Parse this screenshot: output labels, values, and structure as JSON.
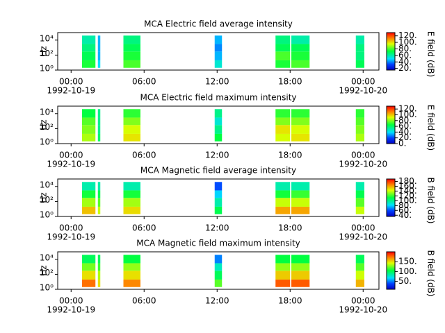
{
  "chart_data": [
    {
      "type": "spectrogram",
      "title": "MCA  Electric field average intensity",
      "ylabel": "Hz",
      "colorbar_label": "E field (dB)",
      "xlim": [
        -1.1,
        25.3
      ],
      "xticks": [
        {
          "value": 0,
          "label": "00:00"
        },
        {
          "value": 6,
          "label": "06:00"
        },
        {
          "value": 12,
          "label": "12:00"
        },
        {
          "value": 18,
          "label": "18:00"
        },
        {
          "value": 24,
          "label": "00:00"
        }
      ],
      "date_labels": [
        {
          "value": 0,
          "label": "1992-10-19"
        },
        {
          "value": 24,
          "label": "1992-10-20"
        }
      ],
      "log_y": true,
      "ylim": [
        1,
        100000
      ],
      "yticks": [
        {
          "value": 1,
          "label": "10⁰"
        },
        {
          "value": 100,
          "label": "10²"
        },
        {
          "value": 10000,
          "label": "10⁴"
        }
      ],
      "clim": [
        15,
        130
      ],
      "cticks": [
        {
          "value": 20,
          "label": "20."
        },
        {
          "value": 40,
          "label": "40."
        },
        {
          "value": 60,
          "label": "60."
        },
        {
          "value": 80,
          "label": "80."
        },
        {
          "value": 100,
          "label": "100."
        },
        {
          "value": 120,
          "label": "120."
        }
      ],
      "segments": [
        [
          0.9,
          2.0
        ],
        [
          2.2,
          2.4
        ],
        [
          4.3,
          5.7
        ],
        [
          11.8,
          12.4
        ],
        [
          16.8,
          18.0
        ],
        [
          18.1,
          19.6
        ],
        [
          23.4,
          24.1
        ]
      ],
      "freq_edges": [
        2,
        20,
        300,
        3000,
        40000
      ],
      "values": [
        [
          75,
          70,
          65,
          60
        ],
        [
          50,
          45,
          45,
          45
        ],
        [
          80,
          75,
          70,
          65
        ],
        [
          55,
          45,
          40,
          45
        ],
        [
          75,
          80,
          70,
          65
        ],
        [
          80,
          75,
          70,
          60
        ],
        [
          70,
          65,
          65,
          60
        ]
      ]
    },
    {
      "type": "spectrogram",
      "title": "MCA  Electric field maximum intensity",
      "ylabel": "Hz",
      "colorbar_label": "E field (dB)",
      "xlim": [
        -1.1,
        25.3
      ],
      "xticks": [
        {
          "value": 0,
          "label": "00:00"
        },
        {
          "value": 6,
          "label": "06:00"
        },
        {
          "value": 12,
          "label": "12:00"
        },
        {
          "value": 18,
          "label": "18:00"
        },
        {
          "value": 24,
          "label": "00:00"
        }
      ],
      "date_labels": [
        {
          "value": 0,
          "label": "1992-10-19"
        },
        {
          "value": 24,
          "label": "1992-10-20"
        }
      ],
      "log_y": true,
      "ylim": [
        1,
        100000
      ],
      "yticks": [
        {
          "value": 1,
          "label": "10⁰"
        },
        {
          "value": 100,
          "label": "10²"
        },
        {
          "value": 10000,
          "label": "10⁴"
        }
      ],
      "clim": [
        0,
        130
      ],
      "cticks": [
        {
          "value": 0,
          "label": "0."
        },
        {
          "value": 20,
          "label": "20."
        },
        {
          "value": 40,
          "label": "40."
        },
        {
          "value": 60,
          "label": "60."
        },
        {
          "value": 80,
          "label": "80."
        },
        {
          "value": 100,
          "label": "100."
        },
        {
          "value": 120,
          "label": "120."
        }
      ],
      "segments": [
        [
          0.9,
          2.0
        ],
        [
          2.2,
          2.4
        ],
        [
          4.3,
          5.7
        ],
        [
          11.8,
          12.4
        ],
        [
          16.8,
          18.0
        ],
        [
          18.1,
          19.6
        ],
        [
          23.4,
          24.1
        ]
      ],
      "freq_edges": [
        2,
        20,
        300,
        3000,
        40000
      ],
      "values": [
        [
          85,
          80,
          75,
          65
        ],
        [
          60,
          55,
          55,
          55
        ],
        [
          95,
          90,
          80,
          70
        ],
        [
          65,
          55,
          45,
          55
        ],
        [
          90,
          95,
          80,
          70
        ],
        [
          95,
          90,
          80,
          70
        ],
        [
          85,
          80,
          75,
          70
        ]
      ]
    },
    {
      "type": "spectrogram",
      "title": "MCA  Magnetic field average intensity",
      "ylabel": "Hz",
      "colorbar_label": "B field (dB)",
      "xlim": [
        -1.1,
        25.3
      ],
      "xticks": [
        {
          "value": 0,
          "label": "00:00"
        },
        {
          "value": 6,
          "label": "06:00"
        },
        {
          "value": 12,
          "label": "12:00"
        },
        {
          "value": 18,
          "label": "18:00"
        },
        {
          "value": 24,
          "label": "00:00"
        }
      ],
      "date_labels": [
        {
          "value": 0,
          "label": "1992-10-19"
        },
        {
          "value": 24,
          "label": "1992-10-20"
        }
      ],
      "log_y": true,
      "ylim": [
        1,
        100000
      ],
      "yticks": [
        {
          "value": 1,
          "label": "10⁰"
        },
        {
          "value": 100,
          "label": "10²"
        },
        {
          "value": 10000,
          "label": "10⁴"
        }
      ],
      "clim": [
        35,
        190
      ],
      "cticks": [
        {
          "value": 40,
          "label": "40."
        },
        {
          "value": 60,
          "label": "60."
        },
        {
          "value": 80,
          "label": "80."
        },
        {
          "value": 100,
          "label": "100."
        },
        {
          "value": 120,
          "label": "120."
        },
        {
          "value": 140,
          "label": "140."
        },
        {
          "value": 160,
          "label": "160."
        },
        {
          "value": 180,
          "label": "180."
        }
      ],
      "segments": [
        [
          0.9,
          2.0
        ],
        [
          2.2,
          2.4
        ],
        [
          4.3,
          5.7
        ],
        [
          11.8,
          12.4
        ],
        [
          16.8,
          18.0
        ],
        [
          18.1,
          19.6
        ],
        [
          23.4,
          24.1
        ]
      ],
      "freq_edges": [
        2,
        20,
        300,
        3000,
        40000
      ],
      "values": [
        [
          155,
          135,
          115,
          95
        ],
        [
          140,
          125,
          110,
          95
        ],
        [
          150,
          135,
          115,
          95
        ],
        [
          110,
          95,
          80,
          60
        ],
        [
          160,
          140,
          115,
          95
        ],
        [
          160,
          140,
          120,
          95
        ],
        [
          140,
          125,
          110,
          95
        ]
      ]
    },
    {
      "type": "spectrogram",
      "title": "MCA  Magnetic field maximum intensity",
      "ylabel": "Hz",
      "colorbar_label": "B field (dB)",
      "xlim": [
        -1.1,
        25.3
      ],
      "xticks": [
        {
          "value": 0,
          "label": "00:00"
        },
        {
          "value": 6,
          "label": "06:00"
        },
        {
          "value": 12,
          "label": "12:00"
        },
        {
          "value": 18,
          "label": "18:00"
        },
        {
          "value": 24,
          "label": "00:00"
        }
      ],
      "date_labels": [
        {
          "value": 0,
          "label": "1992-10-19"
        },
        {
          "value": 24,
          "label": "1992-10-20"
        }
      ],
      "log_y": true,
      "ylim": [
        1,
        100000
      ],
      "yticks": [
        {
          "value": 1,
          "label": "10⁰"
        },
        {
          "value": 100,
          "label": "10²"
        },
        {
          "value": 10000,
          "label": "10⁴"
        }
      ],
      "clim": [
        10,
        200
      ],
      "cticks": [
        {
          "value": 50,
          "label": "50."
        },
        {
          "value": 100,
          "label": "100."
        },
        {
          "value": 150,
          "label": "150."
        }
      ],
      "segments": [
        [
          0.9,
          2.0
        ],
        [
          2.2,
          2.4
        ],
        [
          4.3,
          5.7
        ],
        [
          11.8,
          12.4
        ],
        [
          16.8,
          18.0
        ],
        [
          18.1,
          19.6
        ],
        [
          23.4,
          24.1
        ]
      ],
      "freq_edges": [
        2,
        20,
        300,
        3000,
        40000
      ],
      "values": [
        [
          175,
          150,
          125,
          100
        ],
        [
          150,
          135,
          115,
          100
        ],
        [
          170,
          150,
          130,
          105
        ],
        [
          120,
          100,
          80,
          50
        ],
        [
          180,
          155,
          130,
          105
        ],
        [
          180,
          155,
          130,
          105
        ],
        [
          160,
          140,
          120,
          100
        ]
      ]
    }
  ]
}
